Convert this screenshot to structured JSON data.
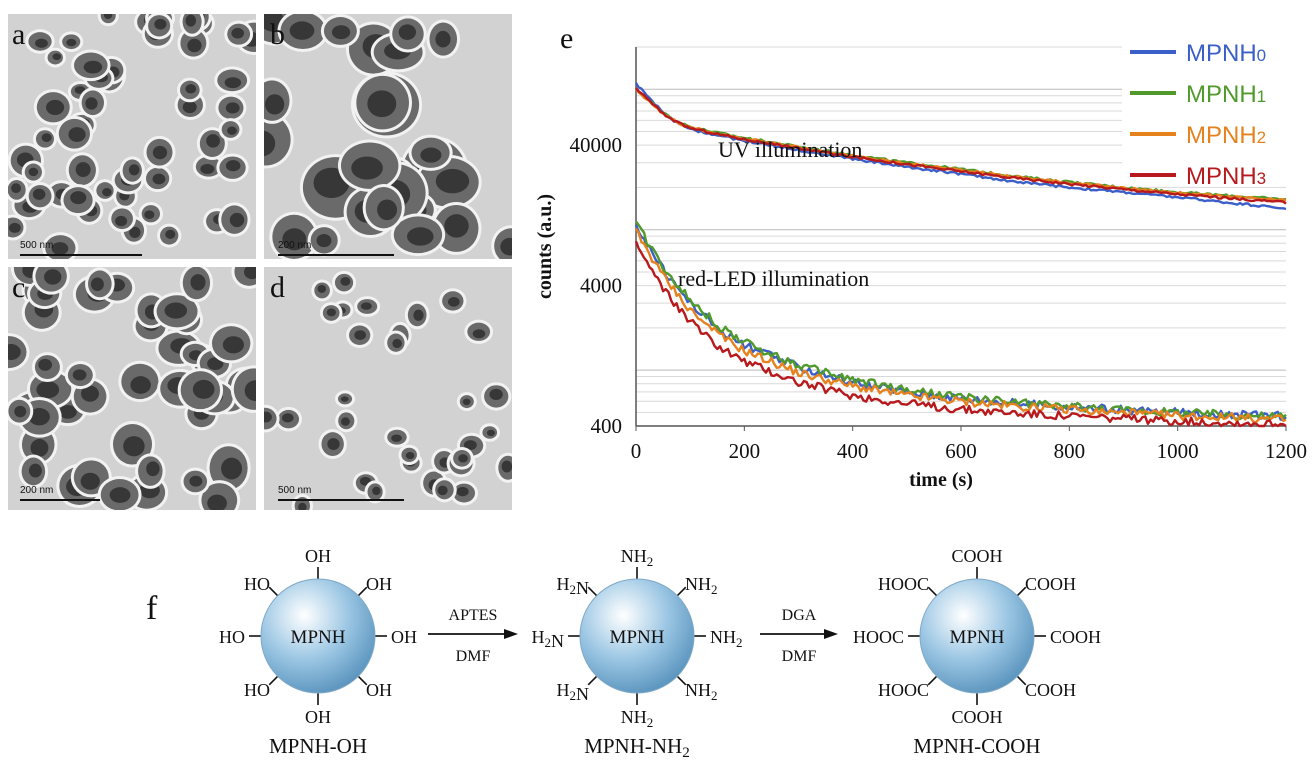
{
  "panels": {
    "a": {
      "letter": "a",
      "scale": "500 nm"
    },
    "b": {
      "letter": "b",
      "scale": "200 nm"
    },
    "c": {
      "letter": "c",
      "scale": "200 nm"
    },
    "d": {
      "letter": "d",
      "scale": "500 nm"
    },
    "e": {
      "letter": "e"
    },
    "f": {
      "letter": "f"
    }
  },
  "chart_data": {
    "type": "line",
    "xlabel": "time (s)",
    "ylabel": "counts (a.u.)",
    "xlim": [
      0,
      1200
    ],
    "x_ticks": [
      "0",
      "200",
      "400",
      "600",
      "800",
      "1000",
      "1200"
    ],
    "y_ticks": [
      "400",
      "4000",
      "40000"
    ],
    "log_y": true,
    "ylim": [
      400,
      200000
    ],
    "grid": "horizontal",
    "legend_position": "top-right",
    "annotations": [
      "UV illumination",
      "red-LED illumination"
    ],
    "series": [
      {
        "name": "MPNH0",
        "color": "#3a5fc8",
        "group": "UV",
        "x": [
          0,
          20,
          50,
          80,
          100,
          150,
          200,
          300,
          400,
          500,
          600,
          700,
          800,
          900,
          1000,
          1100,
          1200
        ],
        "y": [
          110000,
          90000,
          68000,
          56000,
          52000,
          47000,
          43000,
          37000,
          32000,
          28000,
          25000,
          22000,
          20000,
          18500,
          17000,
          15500,
          14200
        ]
      },
      {
        "name": "MPNH1",
        "color": "#4f9a2a",
        "group": "UV",
        "x": [
          0,
          20,
          50,
          80,
          100,
          150,
          200,
          300,
          400,
          500,
          600,
          700,
          800,
          900,
          1000,
          1100,
          1200
        ],
        "y": [
          100000,
          86000,
          68000,
          58000,
          54000,
          49000,
          45000,
          39000,
          34000,
          30000,
          27000,
          24000,
          21800,
          20000,
          18500,
          17400,
          16400
        ]
      },
      {
        "name": "MPNH2",
        "color": "#e6821e",
        "group": "UV",
        "x": [
          0,
          20,
          50,
          80,
          100,
          150,
          200,
          300,
          400,
          500,
          600,
          700,
          800,
          900,
          1000,
          1100,
          1200
        ],
        "y": [
          100000,
          85000,
          67000,
          57000,
          53500,
          48500,
          44500,
          38500,
          33500,
          29600,
          26600,
          23800,
          21600,
          19800,
          18300,
          17100,
          16100
        ]
      },
      {
        "name": "MPNH3",
        "color": "#b8191c",
        "group": "UV",
        "x": [
          0,
          20,
          50,
          80,
          100,
          150,
          200,
          300,
          400,
          500,
          600,
          700,
          800,
          900,
          1000,
          1100,
          1200
        ],
        "y": [
          102000,
          86000,
          67000,
          57000,
          53000,
          48000,
          44000,
          38000,
          33000,
          29200,
          26000,
          23300,
          21200,
          19400,
          17900,
          16700,
          15600
        ]
      },
      {
        "name": "MPNH0",
        "color": "#3a5fc8",
        "group": "red-LED",
        "x": [
          0,
          20,
          50,
          100,
          150,
          200,
          300,
          400,
          500,
          600,
          700,
          800,
          900,
          1000,
          1100,
          1200
        ],
        "y": [
          11000,
          8000,
          5200,
          3000,
          2000,
          1500,
          1050,
          820,
          700,
          630,
          580,
          545,
          520,
          500,
          485,
          470
        ]
      },
      {
        "name": "MPNH1",
        "color": "#4f9a2a",
        "group": "red-LED",
        "x": [
          0,
          20,
          50,
          100,
          150,
          200,
          300,
          400,
          500,
          600,
          700,
          800,
          900,
          1000,
          1100,
          1200
        ],
        "y": [
          11500,
          8400,
          5500,
          3200,
          2100,
          1580,
          1080,
          850,
          720,
          640,
          590,
          550,
          520,
          500,
          480,
          465
        ]
      },
      {
        "name": "MPNH2",
        "color": "#e6821e",
        "group": "red-LED",
        "x": [
          0,
          20,
          50,
          100,
          150,
          200,
          300,
          400,
          500,
          600,
          700,
          800,
          900,
          1000,
          1100,
          1200
        ],
        "y": [
          10000,
          7300,
          4700,
          2700,
          1800,
          1380,
          960,
          770,
          660,
          600,
          555,
          520,
          495,
          475,
          460,
          445
        ]
      },
      {
        "name": "MPNH3",
        "color": "#b8191c",
        "group": "red-LED",
        "x": [
          0,
          20,
          50,
          100,
          150,
          200,
          300,
          400,
          500,
          600,
          700,
          800,
          900,
          1000,
          1100,
          1200
        ],
        "y": [
          8000,
          5800,
          3800,
          2200,
          1500,
          1150,
          820,
          660,
          575,
          525,
          495,
          470,
          450,
          435,
          420,
          410
        ]
      }
    ]
  },
  "scheme": {
    "core": "MPNH",
    "reagent1_top": "APTES",
    "reagent1_bottom": "DMF",
    "reagent2_top": "DGA",
    "reagent2_bottom": "DMF",
    "group_oh": "OH",
    "group_oh_left": "HO",
    "group_nh2": "NH2",
    "group_nh2_left": "H2N",
    "group_cooh": "COOH",
    "group_cooh_left": "HOOC",
    "caption1": "MPNH-OH",
    "caption2": "MPNH-NH2",
    "caption3": "MPNH-COOH",
    "sphere_color": "#9cc7e4"
  }
}
